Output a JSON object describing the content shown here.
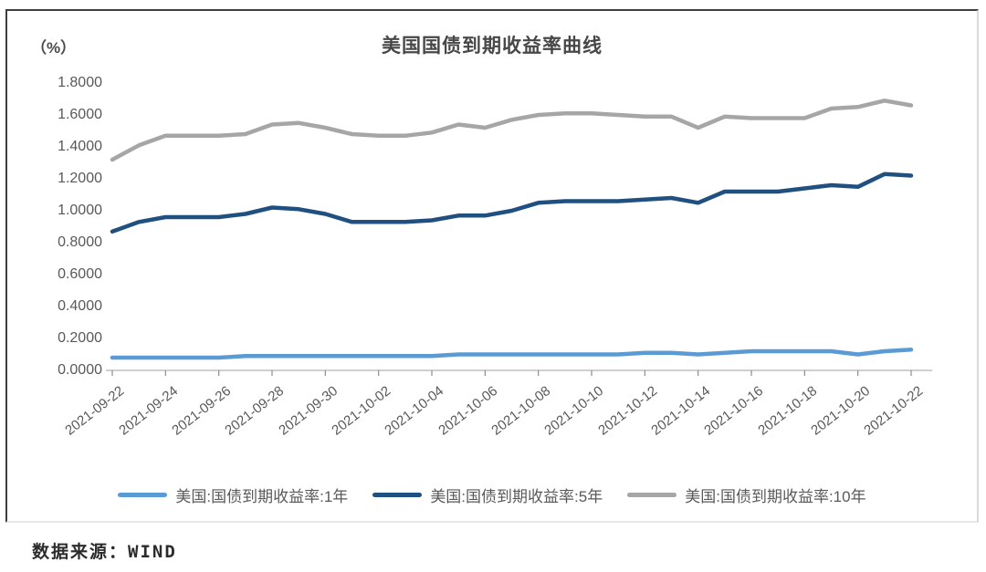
{
  "panel": {
    "unit_label": "（%）",
    "source_label": "数据来源：WIND"
  },
  "chart_data": {
    "type": "line",
    "title": "美国国债到期收益率曲线",
    "ylabel": "（%）",
    "ylim": [
      0,
      1.8
    ],
    "y_tick_interval": 0.2,
    "y_tick_decimals": 4,
    "x_tick_step": 2,
    "grid": false,
    "legend_position": "bottom",
    "categories": [
      "2021-09-22",
      "2021-09-23",
      "2021-09-24",
      "2021-09-25",
      "2021-09-26",
      "2021-09-27",
      "2021-09-28",
      "2021-09-29",
      "2021-09-30",
      "2021-10-01",
      "2021-10-02",
      "2021-10-03",
      "2021-10-04",
      "2021-10-05",
      "2021-10-06",
      "2021-10-07",
      "2021-10-08",
      "2021-10-09",
      "2021-10-10",
      "2021-10-11",
      "2021-10-12",
      "2021-10-13",
      "2021-10-14",
      "2021-10-15",
      "2021-10-16",
      "2021-10-17",
      "2021-10-18",
      "2021-10-19",
      "2021-10-20",
      "2021-10-21",
      "2021-10-22"
    ],
    "series": [
      {
        "name": "美国:国债到期收益率:1年",
        "color": "#5B9BD5",
        "values": [
          0.08,
          0.08,
          0.08,
          0.08,
          0.08,
          0.09,
          0.09,
          0.09,
          0.09,
          0.09,
          0.09,
          0.09,
          0.09,
          0.1,
          0.1,
          0.1,
          0.1,
          0.1,
          0.1,
          0.1,
          0.11,
          0.11,
          0.1,
          0.11,
          0.12,
          0.12,
          0.12,
          0.12,
          0.1,
          0.12,
          0.13
        ]
      },
      {
        "name": "美国:国债到期收益率:5年",
        "color": "#1F5080",
        "values": [
          0.87,
          0.93,
          0.96,
          0.96,
          0.96,
          0.98,
          1.02,
          1.01,
          0.98,
          0.93,
          0.93,
          0.93,
          0.94,
          0.97,
          0.97,
          1.0,
          1.05,
          1.06,
          1.06,
          1.06,
          1.07,
          1.08,
          1.05,
          1.12,
          1.12,
          1.12,
          1.14,
          1.16,
          1.15,
          1.23,
          1.22
        ]
      },
      {
        "name": "美国:国债到期收益率:10年",
        "color": "#A6A6A6",
        "values": [
          1.32,
          1.41,
          1.47,
          1.47,
          1.47,
          1.48,
          1.54,
          1.55,
          1.52,
          1.48,
          1.47,
          1.47,
          1.49,
          1.54,
          1.52,
          1.57,
          1.6,
          1.61,
          1.61,
          1.6,
          1.59,
          1.59,
          1.52,
          1.59,
          1.58,
          1.58,
          1.58,
          1.64,
          1.65,
          1.69,
          1.66
        ]
      }
    ],
    "axis_color": "#BFBFBF",
    "tick_color": "#8C8C8C"
  }
}
